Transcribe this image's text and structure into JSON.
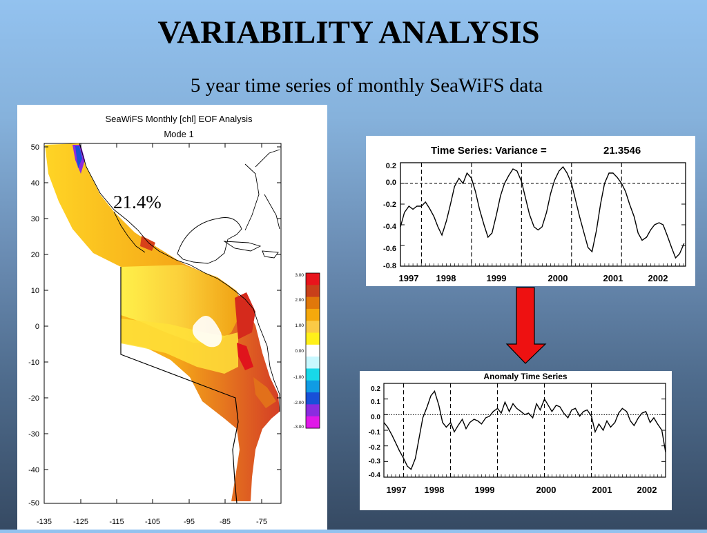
{
  "slide": {
    "title": "VARIABILITY ANALYSIS",
    "subtitle": "5 year time series of monthly SeaWiFS data"
  },
  "map": {
    "title_line1": "SeaWiFS Monthly [chl] EOF Analysis",
    "title_line2": "Mode 1",
    "mode_percent": "21.4%",
    "lat_ticks": [
      "50",
      "40",
      "30",
      "20",
      "10",
      "0",
      "-10",
      "-20",
      "-30",
      "-40",
      "-50"
    ],
    "lon_ticks": [
      "-135",
      "-125",
      "-115",
      "-105",
      "-95",
      "-85",
      "-75"
    ],
    "colorbar_labels": [
      "3.00",
      "2.00",
      "1.00",
      "0.00",
      "-1.00",
      "-2.00",
      "-3.00"
    ],
    "colorbar_colors": [
      "#e8141c",
      "#c8401a",
      "#e0780a",
      "#f5a90c",
      "#fbca46",
      "#fff01a",
      "#ffffff",
      "#c8f8ff",
      "#18d8e8",
      "#109ce4",
      "#1850d8",
      "#8a2ce0",
      "#e018e8"
    ]
  },
  "arrow_color": "#ee1111",
  "chart_data": [
    {
      "type": "line",
      "title": "Time Series: Variance =",
      "variance_value": "21.3546",
      "years": [
        "1997",
        "1998",
        "1999",
        "2000",
        "2001",
        "2002"
      ],
      "yticks": [
        "0.2",
        "0.0",
        "-0.2",
        "-0.4",
        "-0.6",
        "-0.8"
      ],
      "ylim": [
        -0.8,
        0.2
      ],
      "xlim": [
        1997.5,
        2003.2
      ],
      "x": [
        1997.5,
        1997.58,
        1997.67,
        1997.75,
        1997.83,
        1997.92,
        1998.0,
        1998.08,
        1998.17,
        1998.25,
        1998.33,
        1998.42,
        1998.5,
        1998.58,
        1998.67,
        1998.75,
        1998.83,
        1998.92,
        1999.0,
        1999.08,
        1999.17,
        1999.25,
        1999.33,
        1999.42,
        1999.5,
        1999.58,
        1999.67,
        1999.75,
        1999.83,
        1999.92,
        2000.0,
        2000.08,
        2000.17,
        2000.25,
        2000.33,
        2000.42,
        2000.5,
        2000.58,
        2000.67,
        2000.75,
        2000.83,
        2000.92,
        2001.0,
        2001.08,
        2001.17,
        2001.25,
        2001.33,
        2001.42,
        2001.5,
        2001.58,
        2001.67,
        2001.75,
        2001.83,
        2001.92,
        2002.0,
        2002.08,
        2002.17,
        2002.25,
        2002.33,
        2002.42,
        2002.5,
        2002.58,
        2002.67,
        2002.75,
        2002.83,
        2002.92,
        2003.0,
        2003.08,
        2003.17
      ],
      "y": [
        -0.42,
        -0.28,
        -0.22,
        -0.25,
        -0.22,
        -0.22,
        -0.18,
        -0.24,
        -0.32,
        -0.42,
        -0.5,
        -0.36,
        -0.2,
        -0.03,
        0.05,
        0.0,
        0.1,
        0.05,
        -0.08,
        -0.25,
        -0.4,
        -0.52,
        -0.48,
        -0.3,
        -0.12,
        0.0,
        0.08,
        0.14,
        0.12,
        0.02,
        -0.14,
        -0.3,
        -0.42,
        -0.45,
        -0.42,
        -0.28,
        -0.1,
        0.03,
        0.12,
        0.16,
        0.1,
        0.0,
        -0.16,
        -0.32,
        -0.48,
        -0.62,
        -0.66,
        -0.45,
        -0.2,
        0.0,
        0.1,
        0.1,
        0.06,
        0.0,
        -0.08,
        -0.2,
        -0.32,
        -0.48,
        -0.55,
        -0.52,
        -0.45,
        -0.4,
        -0.38,
        -0.4,
        -0.5,
        -0.62,
        -0.72,
        -0.68,
        -0.58
      ],
      "grid": false
    },
    {
      "type": "line",
      "title": "Anomaly Time Series",
      "years": [
        "1997",
        "1998",
        "1999",
        "2000",
        "2001",
        "2002"
      ],
      "yticks": [
        "0.2",
        "0.1",
        "0.0",
        "-0.1",
        "-0.2",
        "-0.3",
        "-0.4"
      ],
      "ylim": [
        -0.4,
        0.2
      ],
      "xlim": [
        1997.0,
        2003.0
      ],
      "x": [
        1997.0,
        1997.08,
        1997.17,
        1997.25,
        1997.33,
        1997.42,
        1997.5,
        1997.58,
        1997.67,
        1997.75,
        1997.83,
        1997.92,
        1998.0,
        1998.08,
        1998.17,
        1998.25,
        1998.33,
        1998.42,
        1998.5,
        1998.58,
        1998.67,
        1998.75,
        1998.83,
        1998.92,
        1999.0,
        1999.08,
        1999.17,
        1999.25,
        1999.33,
        1999.42,
        1999.5,
        1999.58,
        1999.67,
        1999.75,
        1999.83,
        1999.92,
        2000.0,
        2000.08,
        2000.17,
        2000.25,
        2000.33,
        2000.42,
        2000.5,
        2000.58,
        2000.67,
        2000.75,
        2000.83,
        2000.92,
        2001.0,
        2001.08,
        2001.17,
        2001.25,
        2001.33,
        2001.42,
        2001.5,
        2001.58,
        2001.67,
        2001.75,
        2001.83,
        2001.92,
        2002.0,
        2002.08,
        2002.17,
        2002.25,
        2002.33,
        2002.42,
        2002.5,
        2002.58,
        2002.67,
        2002.75,
        2002.83,
        2002.92,
        2003.0
      ],
      "y": [
        -0.05,
        -0.08,
        -0.13,
        -0.18,
        -0.23,
        -0.28,
        -0.33,
        -0.35,
        -0.28,
        -0.15,
        -0.02,
        0.05,
        0.12,
        0.15,
        0.06,
        -0.05,
        -0.08,
        -0.05,
        -0.11,
        -0.07,
        -0.03,
        -0.09,
        -0.05,
        -0.03,
        -0.04,
        -0.06,
        -0.02,
        -0.01,
        0.02,
        0.04,
        0.01,
        0.08,
        0.02,
        0.07,
        0.04,
        0.02,
        0.0,
        0.01,
        -0.02,
        0.07,
        0.03,
        0.1,
        0.06,
        0.02,
        0.06,
        0.05,
        0.01,
        -0.02,
        0.03,
        0.04,
        -0.01,
        0.02,
        0.03,
        -0.01,
        -0.11,
        -0.06,
        -0.1,
        -0.04,
        -0.08,
        -0.05,
        0.01,
        0.04,
        0.02,
        -0.04,
        -0.07,
        -0.02,
        0.01,
        0.02,
        -0.05,
        -0.02,
        -0.06,
        -0.1,
        -0.24
      ],
      "grid": false
    }
  ]
}
